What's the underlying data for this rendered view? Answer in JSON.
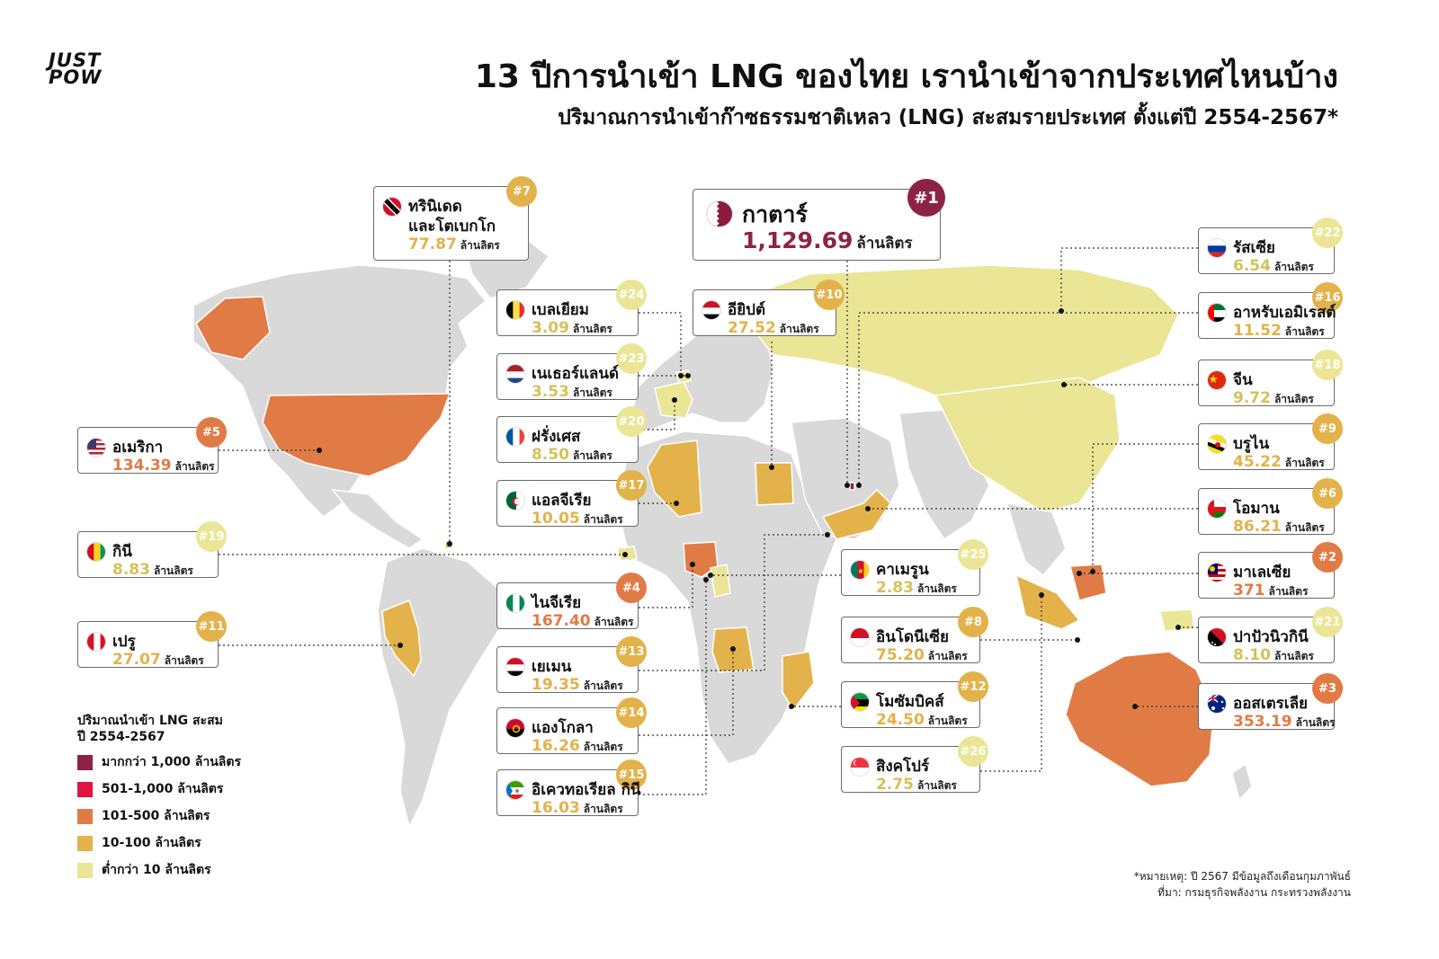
{
  "brand": {
    "line1": "JUST",
    "line2": "POW"
  },
  "title": "13 ปีการนำเข้า LNG ของไทย เรานำเข้าจากประเทศไหนบ้าง",
  "subtitle": "ปริมาณการนำเข้าก๊าซธรรมชาติเหลว (LNG) สะสมรายประเทศ ตั้งแต่ปี 2554-2567*",
  "unit": "ล้านลิตร",
  "colors": {
    "over_1000": "#8c2346",
    "r501_1000": "#e0143c",
    "r101_500": "#e17b46",
    "r10_100": "#e3b24a",
    "under_10": "#ebe596",
    "no_data": "#d9d9d9"
  },
  "legend": {
    "title_line1": "ปริมาณนำเข้า LNG สะสม",
    "title_line2": "ปี 2554-2567",
    "items": [
      {
        "label": "มากกว่า 1,000 ล้านลิตร",
        "color": "#8c2346"
      },
      {
        "label": "501-1,000 ล้านลิตร",
        "color": "#e0143c"
      },
      {
        "label": "101-500 ล้านลิตร",
        "color": "#e17b46"
      },
      {
        "label": "10-100 ล้านลิตร",
        "color": "#e3b24a"
      },
      {
        "label": "ต่ำกว่า 10 ล้านลิตร",
        "color": "#ebe596"
      }
    ]
  },
  "countries": [
    {
      "id": "qatar",
      "rank": "#1",
      "name": "กาตาร์",
      "value": "1,129.69",
      "flag": "qatar",
      "tier": "over_1000"
    },
    {
      "id": "malaysia",
      "rank": "#2",
      "name": "มาเลเซีย",
      "value": "371",
      "flag": "malaysia",
      "tier": "r101_500"
    },
    {
      "id": "australia",
      "rank": "#3",
      "name": "ออสเตรเลีย",
      "value": "353.19",
      "flag": "australia",
      "tier": "r101_500"
    },
    {
      "id": "nigeria",
      "rank": "#4",
      "name": "ไนจีเรีย",
      "value": "167.40",
      "flag": "nigeria",
      "tier": "r101_500"
    },
    {
      "id": "usa",
      "rank": "#5",
      "name": "อเมริกา",
      "value": "134.39",
      "flag": "usa",
      "tier": "r101_500"
    },
    {
      "id": "oman",
      "rank": "#6",
      "name": "โอมาน",
      "value": "86.21",
      "flag": "oman",
      "tier": "r10_100"
    },
    {
      "id": "trinidad",
      "rank": "#7",
      "name": "ทรินิเดด",
      "name2": "และโตเบกโก",
      "value": "77.87",
      "flag": "trinidad",
      "tier": "r10_100"
    },
    {
      "id": "indonesia",
      "rank": "#8",
      "name": "อินโดนีเซีย",
      "value": "75.20",
      "flag": "indonesia",
      "tier": "r10_100"
    },
    {
      "id": "brunei",
      "rank": "#9",
      "name": "บรูไน",
      "value": "45.22",
      "flag": "brunei",
      "tier": "r10_100"
    },
    {
      "id": "egypt",
      "rank": "#10",
      "name": "อียิปต์",
      "value": "27.52",
      "flag": "egypt",
      "tier": "r10_100"
    },
    {
      "id": "peru",
      "rank": "#11",
      "name": "เปรู",
      "value": "27.07",
      "flag": "peru",
      "tier": "r10_100"
    },
    {
      "id": "mozambique",
      "rank": "#12",
      "name": "โมซัมบิคส์",
      "value": "24.50",
      "flag": "mozambique",
      "tier": "r10_100"
    },
    {
      "id": "yemen",
      "rank": "#13",
      "name": "เยเมน",
      "value": "19.35",
      "flag": "yemen",
      "tier": "r10_100"
    },
    {
      "id": "angola",
      "rank": "#14",
      "name": "แองโกลา",
      "value": "16.26",
      "flag": "angola",
      "tier": "r10_100"
    },
    {
      "id": "eqguinea",
      "rank": "#15",
      "name": "อิเควทอเรียล กินี",
      "value": "16.03",
      "flag": "eqguinea",
      "tier": "r10_100"
    },
    {
      "id": "uae",
      "rank": "#16",
      "name": "อาหรับเอมิเรสต์",
      "value": "11.52",
      "flag": "uae",
      "tier": "r10_100"
    },
    {
      "id": "algeria",
      "rank": "#17",
      "name": "แอลจีเรีย",
      "value": "10.05",
      "flag": "algeria",
      "tier": "r10_100"
    },
    {
      "id": "china",
      "rank": "#18",
      "name": "จีน",
      "value": "9.72",
      "flag": "china",
      "tier": "under_10"
    },
    {
      "id": "guinea",
      "rank": "#19",
      "name": "กินี",
      "value": "8.83",
      "flag": "guinea",
      "tier": "under_10"
    },
    {
      "id": "france",
      "rank": "#20",
      "name": "ฝรั่งเศส",
      "value": "8.50",
      "flag": "france",
      "tier": "under_10"
    },
    {
      "id": "png",
      "rank": "#21",
      "name": "ปาปัวนิวกินี",
      "value": "8.10",
      "flag": "png",
      "tier": "under_10"
    },
    {
      "id": "russia",
      "rank": "#22",
      "name": "รัสเซีย",
      "value": "6.54",
      "flag": "russia",
      "tier": "under_10"
    },
    {
      "id": "netherlands",
      "rank": "#23",
      "name": "เนเธอร์แลนด์",
      "value": "3.53",
      "flag": "netherlands",
      "tier": "under_10"
    },
    {
      "id": "belgium",
      "rank": "#24",
      "name": "เบลเยียม",
      "value": "3.09",
      "flag": "belgium",
      "tier": "under_10"
    },
    {
      "id": "cameroon",
      "rank": "#25",
      "name": "คาเมรูน",
      "value": "2.83",
      "flag": "cameroon",
      "tier": "under_10"
    },
    {
      "id": "singapore",
      "rank": "#26",
      "name": "สิงคโปร์",
      "value": "2.75",
      "flag": "singapore",
      "tier": "under_10"
    }
  ],
  "footnote": {
    "note": "*หมายเหตุ: ปี 2567 มีข้อมูลถึงเดือนกุมภาพันธ์",
    "source": "ที่มา: กรมธุรกิจพลังงาน กระทรวงพลังงาน"
  }
}
